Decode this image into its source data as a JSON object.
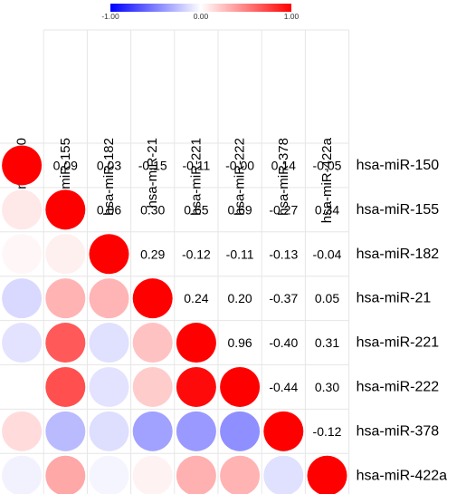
{
  "chart_data": {
    "type": "heatmap",
    "title": "",
    "colorbar": {
      "min_label": "-1.00",
      "mid_label": "0.00",
      "max_label": "1.00",
      "colors": [
        "#0000ff",
        "#ffffff",
        "#ff0000"
      ]
    },
    "labels": [
      "hsa-miR-150",
      "hsa-miR-155",
      "hsa-miR-182",
      "hsa-miR-21",
      "hsa-miR-221",
      "hsa-miR-222",
      "hsa-miR-378",
      "hsa-miR-422a"
    ],
    "matrix": [
      [
        1.0,
        0.09,
        0.03,
        -0.15,
        -0.11,
        -0.0,
        0.14,
        -0.05
      ],
      [
        0.09,
        1.0,
        0.06,
        0.3,
        0.65,
        0.69,
        -0.27,
        0.34
      ],
      [
        0.03,
        0.06,
        1.0,
        0.29,
        -0.12,
        -0.11,
        -0.13,
        -0.04
      ],
      [
        -0.15,
        0.3,
        0.29,
        1.0,
        0.24,
        0.2,
        -0.37,
        0.05
      ],
      [
        -0.11,
        0.65,
        -0.12,
        0.24,
        1.0,
        0.96,
        -0.4,
        0.31
      ],
      [
        -0.0,
        0.69,
        -0.11,
        0.2,
        0.96,
        1.0,
        -0.44,
        0.3
      ],
      [
        0.14,
        -0.27,
        -0.13,
        -0.37,
        -0.4,
        -0.44,
        1.0,
        -0.12
      ],
      [
        -0.05,
        0.34,
        -0.04,
        0.05,
        0.31,
        0.3,
        -0.12,
        1.0
      ]
    ],
    "value_labels": [
      [
        "",
        "0.09",
        "0.03",
        "-0.15",
        "-0.11",
        "-0.00",
        "0.14",
        "-0.05"
      ],
      [
        "",
        "",
        "0.06",
        "0.30",
        "0.65",
        "0.69",
        "-0.27",
        "0.34"
      ],
      [
        "",
        "",
        "",
        "0.29",
        "-0.12",
        "-0.11",
        "-0.13",
        "-0.04"
      ],
      [
        "",
        "",
        "",
        "",
        "0.24",
        "0.20",
        "-0.37",
        "0.05"
      ],
      [
        "",
        "",
        "",
        "",
        "",
        "0.96",
        "-0.40",
        "0.31"
      ],
      [
        "",
        "",
        "",
        "",
        "",
        "",
        "-0.44",
        "0.30"
      ],
      [
        "",
        "",
        "",
        "",
        "",
        "",
        "",
        "-0.12"
      ],
      [
        "",
        "",
        "",
        "",
        "",
        "",
        "",
        ""
      ]
    ],
    "lower_triangle": "circles",
    "upper_triangle": "numbers",
    "grid": true
  }
}
